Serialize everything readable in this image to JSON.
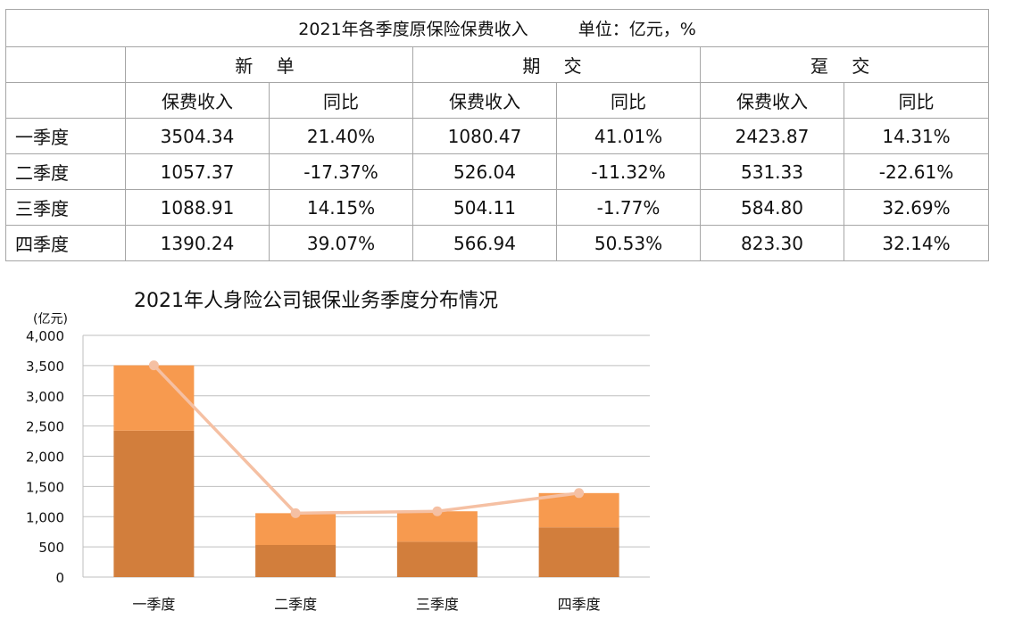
{
  "table": {
    "title": "2021年各季度原保险保费收入",
    "unit": "单位：亿元，%",
    "groups": [
      "新 单",
      "期 交",
      "趸 交"
    ],
    "subheaders": [
      "保费收入",
      "同比",
      "保费收入",
      "同比",
      "保费收入",
      "同比"
    ],
    "rows": [
      {
        "label": "一季度",
        "cells": [
          "3504.34",
          "21.40%",
          "1080.47",
          "41.01%",
          "2423.87",
          "14.31%"
        ]
      },
      {
        "label": "二季度",
        "cells": [
          "1057.37",
          "-17.37%",
          "526.04",
          "-11.32%",
          "531.33",
          "-22.61%"
        ]
      },
      {
        "label": "三季度",
        "cells": [
          "1088.91",
          "14.15%",
          "504.11",
          "-1.77%",
          "584.80",
          "32.69%"
        ]
      },
      {
        "label": "四季度",
        "cells": [
          "1390.24",
          "39.07%",
          "566.94",
          "50.53%",
          "823.30",
          "32.14%"
        ]
      }
    ]
  },
  "chart_data": {
    "type": "bar",
    "title": "2021年人身险公司银保业务季度分布情况",
    "ylabel": "(亿元)",
    "categories": [
      "一季度",
      "二季度",
      "三季度",
      "四季度"
    ],
    "ylim": [
      0,
      4000
    ],
    "yticks": [
      "0",
      "500",
      "1,000",
      "1,500",
      "2,000",
      "2,500",
      "3,000",
      "3,500",
      "4,000"
    ],
    "stacked": true,
    "grid": true,
    "series": [
      {
        "type": "bar",
        "values": [
          2423.87,
          531.33,
          584.8,
          823.3
        ],
        "color": "#d27e3c"
      },
      {
        "type": "bar",
        "values": [
          1080.47,
          526.04,
          504.11,
          566.94
        ],
        "color": "#f79a4f"
      },
      {
        "type": "line",
        "values": [
          3504.34,
          1057.37,
          1088.91,
          1390.24
        ],
        "color": "#f5c0a3"
      }
    ]
  }
}
